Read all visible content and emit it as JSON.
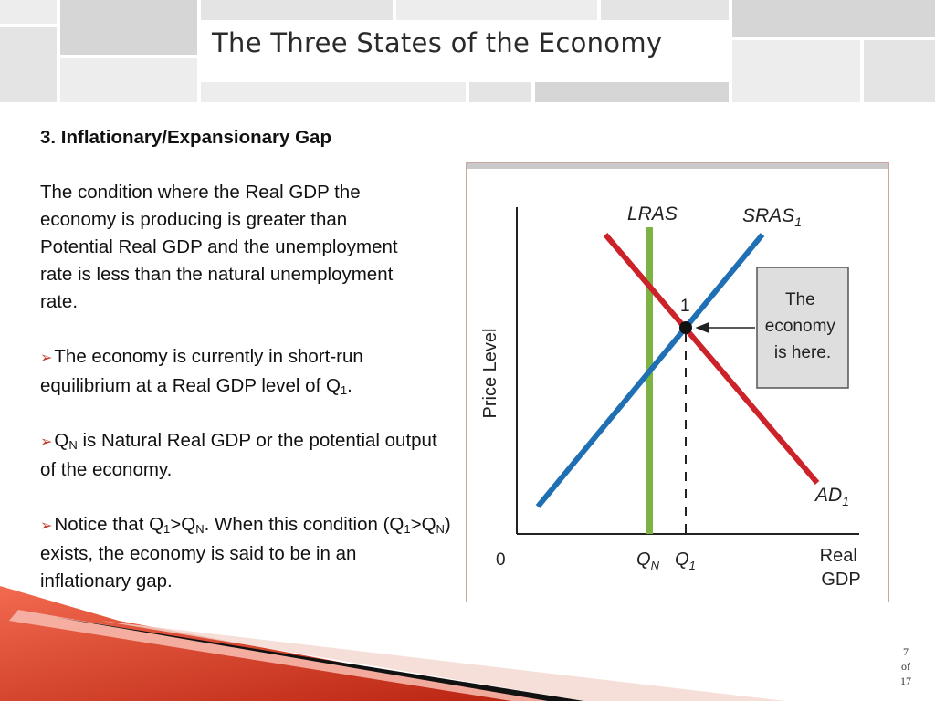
{
  "title": "The Three States of the Economy",
  "content": {
    "heading": "3. Inflationary/Expansionary Gap",
    "definition": "The condition where the Real GDP the economy is producing is greater than Potential Real GDP and the unemployment rate is less than the natural unemployment rate.",
    "bullet_symbol": "➢",
    "bullet1_text": "The economy is currently in short-run equilibrium at a Real GDP level of Q",
    "bullet1_sub": "1",
    "bullet1_end": ".",
    "bullet2_q": "Q",
    "bullet2_sub": "N",
    "bullet2_text": " is Natural Real GDP or the potential output of the economy.",
    "bullet3_a": "Notice that Q",
    "bullet3_sub1": "1",
    "bullet3_b": ">Q",
    "bullet3_sub2": "N",
    "bullet3_c": ". When this condition (Q",
    "bullet3_sub3": "1",
    "bullet3_d": ">Q",
    "bullet3_sub4": "N",
    "bullet3_e": ") exists, the economy is said to be in an inflationary gap."
  },
  "diagram": {
    "y_axis_label": "Price Level",
    "x_axis_label_line1": "Real",
    "x_axis_label_line2": "GDP",
    "origin_label": "0",
    "lras": {
      "label": "LRAS",
      "color": "#7cb342"
    },
    "sras": {
      "label": "SRAS",
      "sub": "1",
      "color": "#1f6fb5"
    },
    "ad": {
      "label": "AD",
      "sub": "1",
      "color": "#cc2229"
    },
    "qn": {
      "label": "Q",
      "sub": "N"
    },
    "q1": {
      "label": "Q",
      "sub": "1"
    },
    "point_label": "1",
    "callout_line1": "The",
    "callout_line2": "economy",
    "callout_line3": "is here."
  },
  "page": {
    "current": "7",
    "of_label": "of",
    "total": "17"
  }
}
